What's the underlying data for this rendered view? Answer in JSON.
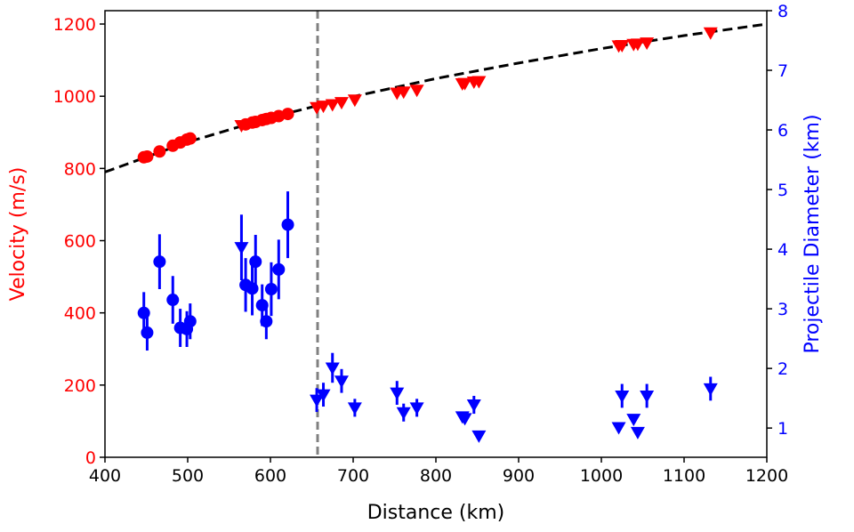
{
  "chart_data": {
    "type": "scatter",
    "xlabel": "Distance (km)",
    "ylabel_left": "Velocity (m/s)",
    "ylabel_right": "Projectile Diameter (km)",
    "xlim": [
      400,
      1200
    ],
    "ylim_left": [
      0,
      1237
    ],
    "ylim_right": [
      0.51,
      8.0
    ],
    "x_ticks": [
      400,
      500,
      600,
      700,
      800,
      900,
      1000,
      1100,
      1200
    ],
    "y_ticks_left": [
      0,
      200,
      400,
      600,
      800,
      1000,
      1200
    ],
    "y_ticks_right": [
      1,
      2,
      3,
      4,
      5,
      6,
      7,
      8
    ],
    "grid": false,
    "colors": {
      "velocity": "#ff0000",
      "diameter": "#0000ff",
      "fit": "#000000",
      "vline": "#808080"
    },
    "vertical_line_x": 657,
    "fit_curve": {
      "style": "dashed",
      "x": [
        400,
        500,
        600,
        700,
        800,
        900,
        1000,
        1100,
        1200
      ],
      "y": [
        790,
        873,
        941,
        999,
        1049,
        1092,
        1132,
        1168,
        1200
      ]
    },
    "velocity_circles": {
      "x": [
        447,
        451,
        466,
        482,
        491,
        499,
        503,
        570,
        578,
        582,
        590,
        595,
        601,
        610,
        621
      ],
      "y": [
        831,
        833,
        847,
        863,
        872,
        880,
        883,
        922,
        927,
        929,
        934,
        937,
        940,
        945,
        951
      ]
    },
    "velocity_triangles": {
      "x": [
        565,
        656,
        664,
        675,
        686,
        702,
        753,
        761,
        777,
        832,
        835,
        846,
        852,
        1021,
        1025,
        1039,
        1044,
        1055,
        1132
      ],
      "y": [
        919,
        969,
        973,
        977,
        983,
        990,
        1009,
        1012,
        1017,
        1035,
        1036,
        1040,
        1041,
        1140,
        1141,
        1144,
        1145,
        1148,
        1176
      ]
    },
    "diameter_circles": {
      "x": [
        447,
        451,
        466,
        482,
        491,
        499,
        503,
        570,
        578,
        582,
        590,
        595,
        601,
        610,
        621
      ],
      "y": [
        2.93,
        2.6,
        3.79,
        3.15,
        2.68,
        2.66,
        2.79,
        3.4,
        3.34,
        3.79,
        3.06,
        2.79,
        3.33,
        3.66,
        4.41
      ],
      "yerr": [
        0.35,
        0.3,
        0.46,
        0.4,
        0.32,
        0.3,
        0.3,
        0.45,
        0.45,
        0.45,
        0.35,
        0.3,
        0.45,
        0.5,
        0.56
      ]
    },
    "diameter_triangles": {
      "x": [
        565,
        656,
        664,
        675,
        686,
        702,
        753,
        761,
        777,
        832,
        835,
        846,
        852,
        1021,
        1025,
        1039,
        1044,
        1055,
        1132
      ],
      "y": [
        4.03,
        1.47,
        1.56,
        2.01,
        1.79,
        1.34,
        1.59,
        1.26,
        1.34,
        1.19,
        1.16,
        1.39,
        0.87,
        1.01,
        1.54,
        1.15,
        0.93,
        1.54,
        1.66
      ],
      "yerr": [
        0.55,
        0.2,
        0.2,
        0.25,
        0.2,
        0.15,
        0.2,
        0.15,
        0.15,
        0.05,
        0.05,
        0.15,
        0.0,
        0.0,
        0.2,
        0.05,
        0.0,
        0.2,
        0.2
      ]
    }
  }
}
